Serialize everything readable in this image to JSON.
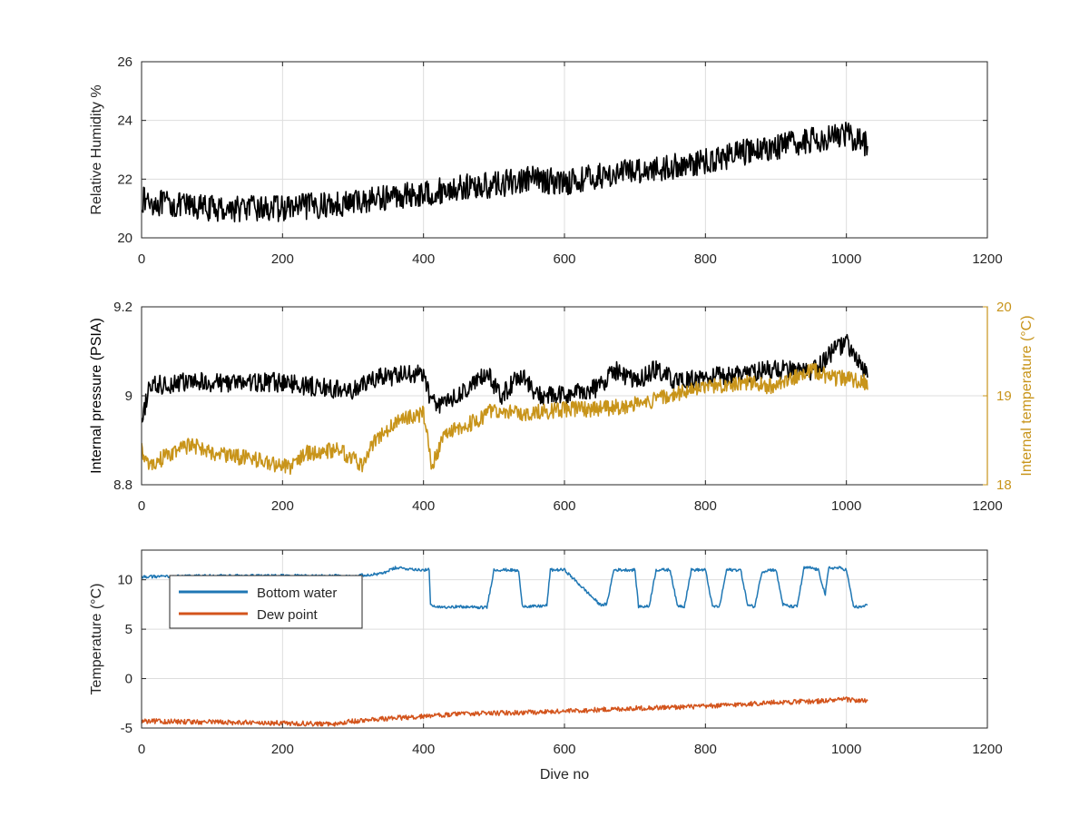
{
  "colors": {
    "black": "#000000",
    "gold": "#c8941a",
    "blue": "#1f77b4",
    "orange": "#d3541c",
    "grid": "#dddddd",
    "axis": "#262626"
  },
  "chart_data": [
    {
      "type": "line",
      "ylabel": "Relative Humidity %",
      "xlim": [
        0,
        1200
      ],
      "ylim": [
        20,
        26
      ],
      "xticks": [
        0,
        200,
        400,
        600,
        800,
        1000,
        1200
      ],
      "yticks": [
        20,
        22,
        24,
        26
      ],
      "grid": true,
      "series": [
        {
          "color": "#000000",
          "x": [
            0,
            20,
            50,
            100,
            150,
            200,
            250,
            300,
            350,
            400,
            450,
            500,
            550,
            600,
            650,
            700,
            750,
            800,
            850,
            900,
            950,
            980,
            1000,
            1030
          ],
          "y": [
            21.3,
            21.2,
            21.1,
            21.0,
            21.0,
            21.0,
            21.1,
            21.2,
            21.4,
            21.5,
            21.7,
            21.8,
            22.0,
            21.9,
            22.1,
            22.3,
            22.4,
            22.6,
            22.9,
            23.1,
            23.3,
            23.5,
            23.5,
            23.2
          ],
          "noise": 0.45
        }
      ]
    },
    {
      "type": "line",
      "ylabel": "Internal pressure (PSIA)",
      "y2label": "Internal temperature (°C)",
      "xlim": [
        0,
        1200
      ],
      "ylim": [
        8.8,
        9.2
      ],
      "y2lim": [
        18,
        20
      ],
      "xticks": [
        0,
        200,
        400,
        600,
        800,
        1000,
        1200
      ],
      "yticks": [
        8.8,
        9,
        9.2
      ],
      "y2ticks": [
        18,
        19,
        20
      ],
      "grid": true,
      "series": [
        {
          "axis": "left",
          "color": "#000000",
          "x": [
            0,
            10,
            50,
            100,
            200,
            300,
            330,
            400,
            410,
            420,
            450,
            490,
            510,
            540,
            560,
            600,
            650,
            670,
            700,
            730,
            760,
            800,
            850,
            900,
            950,
            980,
            1000,
            1030
          ],
          "y": [
            8.93,
            9.02,
            9.03,
            9.03,
            9.03,
            9.01,
            9.04,
            9.05,
            8.99,
            8.98,
            9.0,
            9.05,
            9.0,
            9.05,
            9.0,
            9.0,
            9.02,
            9.06,
            9.03,
            9.06,
            9.03,
            9.04,
            9.05,
            9.06,
            9.05,
            9.1,
            9.12,
            9.04
          ],
          "noise": 0.022
        },
        {
          "axis": "right",
          "color": "#c8941a",
          "x": [
            0,
            10,
            30,
            70,
            100,
            150,
            210,
            230,
            280,
            315,
            330,
            360,
            400,
            412,
            430,
            470,
            500,
            550,
            600,
            650,
            700,
            750,
            800,
            850,
            900,
            950,
            980,
            1000,
            1030
          ],
          "y": [
            18.4,
            18.2,
            18.3,
            18.45,
            18.35,
            18.3,
            18.2,
            18.35,
            18.4,
            18.2,
            18.5,
            18.7,
            18.8,
            18.2,
            18.6,
            18.7,
            18.85,
            18.8,
            18.85,
            18.85,
            18.9,
            19.0,
            19.1,
            19.15,
            19.1,
            19.3,
            19.2,
            19.2,
            19.15
          ],
          "noise": 0.09
        }
      ]
    },
    {
      "type": "line",
      "xlabel": "Dive no",
      "ylabel": "Temperature (°C)",
      "xlim": [
        0,
        1200
      ],
      "ylim": [
        -5,
        13
      ],
      "xticks": [
        0,
        200,
        400,
        600,
        800,
        1000,
        1200
      ],
      "yticks": [
        -5,
        0,
        5,
        10
      ],
      "grid": true,
      "legend": "top-left",
      "series": [
        {
          "name": "Bottom water",
          "color": "#1f77b4",
          "x": [
            0,
            100,
            200,
            300,
            340,
            360,
            400,
            408,
            410,
            420,
            440,
            480,
            490,
            500,
            510,
            520,
            535,
            540,
            550,
            560,
            575,
            580,
            600,
            650,
            660,
            670,
            680,
            700,
            705,
            710,
            720,
            730,
            740,
            750,
            760,
            770,
            780,
            790,
            800,
            810,
            820,
            830,
            840,
            850,
            860,
            870,
            880,
            890,
            900,
            910,
            920,
            930,
            940,
            950,
            960,
            970,
            975,
            980,
            990,
            1000,
            1010,
            1020,
            1030
          ],
          "y": [
            10.3,
            10.4,
            10.4,
            10.4,
            10.6,
            11.2,
            11.0,
            11.0,
            7.4,
            7.2,
            7.3,
            7.2,
            7.2,
            11.0,
            11.0,
            11.0,
            10.9,
            7.4,
            7.3,
            7.3,
            7.4,
            11.0,
            11.0,
            7.5,
            7.5,
            11.0,
            11.0,
            11.0,
            7.3,
            7.3,
            7.3,
            11.0,
            11.0,
            11.0,
            7.4,
            7.3,
            11.0,
            11.0,
            11.0,
            7.3,
            7.3,
            11.0,
            11.0,
            11.0,
            7.4,
            7.3,
            10.8,
            11.0,
            11.0,
            7.5,
            7.3,
            7.3,
            11.2,
            11.2,
            11.0,
            8.5,
            11.2,
            11.2,
            11.2,
            11.0,
            7.3,
            7.2,
            7.5
          ],
          "noise": 0.15
        },
        {
          "name": "Dew point",
          "color": "#d3541c",
          "x": [
            0,
            100,
            200,
            270,
            300,
            400,
            450,
            500,
            600,
            700,
            800,
            900,
            955,
            1000,
            1030
          ],
          "y": [
            -4.3,
            -4.4,
            -4.5,
            -4.6,
            -4.3,
            -3.8,
            -3.6,
            -3.5,
            -3.3,
            -3.0,
            -2.8,
            -2.4,
            -2.3,
            -2.1,
            -2.3
          ],
          "noise": 0.25
        }
      ]
    }
  ]
}
